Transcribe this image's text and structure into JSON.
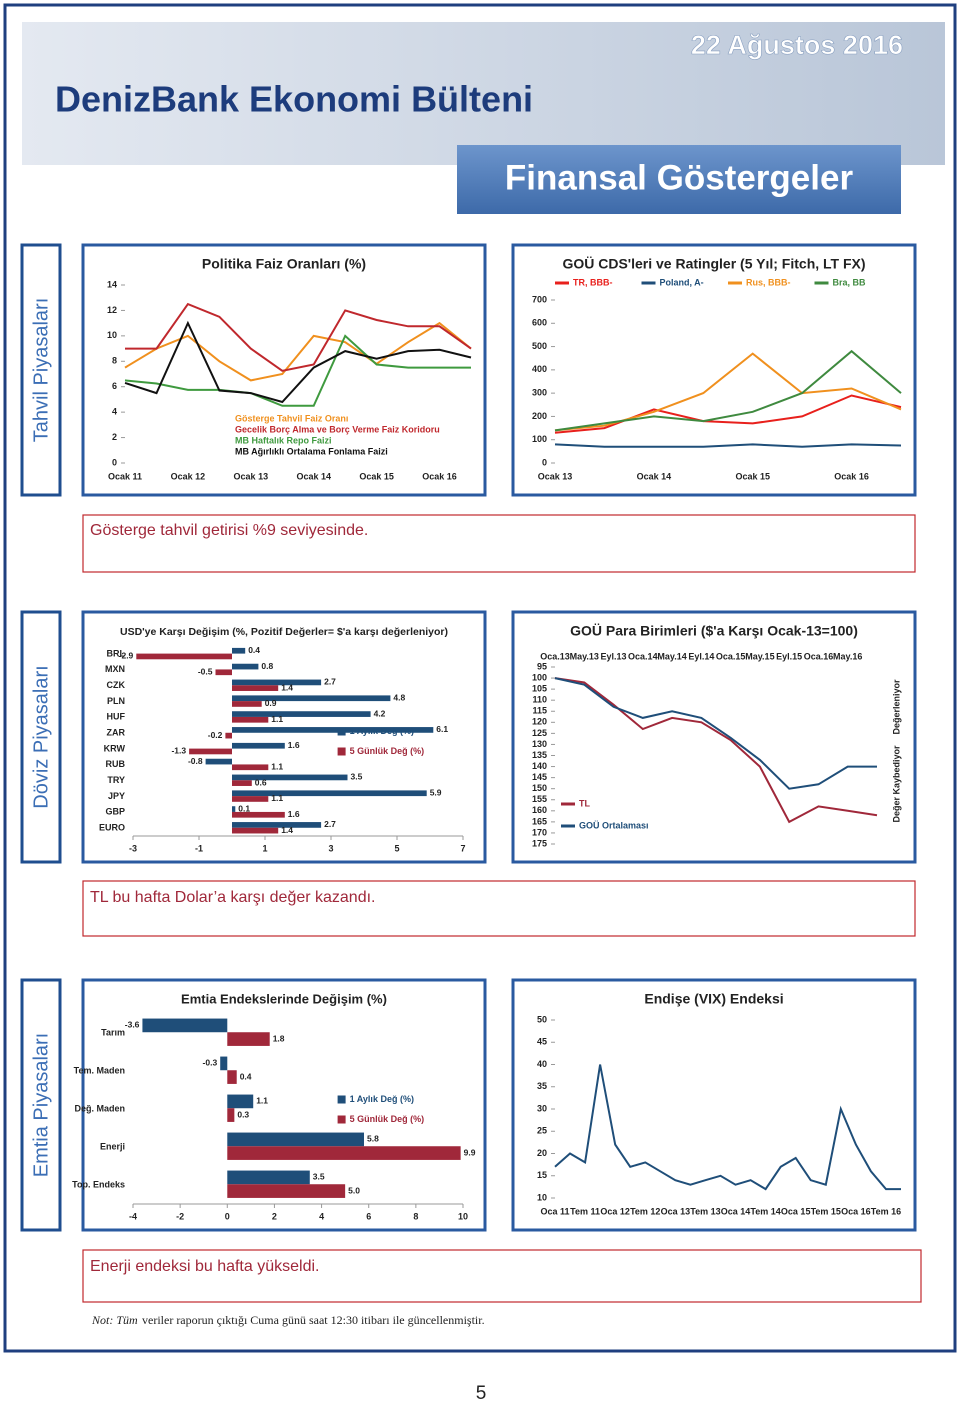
{
  "header": {
    "title": "DenizBank Ekonomi Bülteni",
    "date": "22 Ağustos 2016",
    "section": "Finansal Göstergeler"
  },
  "sections": [
    {
      "label": "Tahvil Piyasaları",
      "comment": "Gösterge tahvil getirisi %9 seviyesinde."
    },
    {
      "label": "Döviz Piyasaları",
      "comment": "TL bu hafta Dolar’a karşı değer kazandı."
    },
    {
      "label": "Emtia Piyasaları",
      "comment": "Enerji endeksi bu hafta yükseldi."
    }
  ],
  "chart_data": [
    {
      "type": "line",
      "title": "Politika Faiz Oranları (%)",
      "categories": [
        "Ocak 11",
        null,
        "Ocak 12",
        null,
        "Ocak 13",
        null,
        "Ocak 14",
        null,
        "Ocak 15",
        null,
        "Ocak 16",
        null
      ],
      "series": [
        {
          "name": "Gösterge Tahvil Faiz Oranı",
          "color": "#f0901e",
          "values": [
            7.5,
            9,
            10,
            8,
            6.5,
            7,
            10,
            9.5,
            7.8,
            9.5,
            11,
            9
          ]
        },
        {
          "name": "Gecelik Borç Alma ve Borç Verme Faiz Koridoru",
          "color": "#c0282d",
          "values": [
            9,
            9,
            12.5,
            11.5,
            9,
            7.25,
            7.75,
            12,
            11.25,
            10.75,
            10.75,
            9
          ]
        },
        {
          "name": "MB Haftalık Repo Faizi",
          "color": "#3f9a3f",
          "values": [
            6.5,
            6.25,
            5.75,
            5.75,
            5.5,
            4.5,
            4.5,
            10,
            7.75,
            7.5,
            7.5,
            7.5
          ]
        },
        {
          "name": "MB Ağırlıklı Ortalama Fonlama Faizi",
          "color": "#111111",
          "values": [
            6.3,
            5.5,
            11,
            5.7,
            5.5,
            4.8,
            7.5,
            8.8,
            8.2,
            8.8,
            8.9,
            8.3
          ]
        }
      ],
      "ylim": [
        0,
        14
      ],
      "yticks": [
        0,
        2,
        4,
        6,
        8,
        10,
        12,
        14
      ],
      "legend": "inside"
    },
    {
      "type": "line",
      "title": "GOÜ CDS'leri ve Ratingler (5 Yıl; Fitch, LT FX)",
      "categories": [
        "Ocak 13",
        null,
        "Ocak 14",
        null,
        "Ocak 15",
        null,
        "Ocak 16",
        null
      ],
      "series": [
        {
          "name": "TR, BBB-",
          "color": "#e8201c",
          "values": [
            130,
            150,
            230,
            180,
            170,
            200,
            290,
            240
          ]
        },
        {
          "name": "Poland, A-",
          "color": "#1f4e79",
          "values": [
            80,
            70,
            70,
            70,
            80,
            70,
            80,
            75
          ]
        },
        {
          "name": "Rus, BBB-",
          "color": "#f0901e",
          "values": [
            140,
            160,
            220,
            300,
            470,
            300,
            320,
            230
          ]
        },
        {
          "name": "Bra, BB",
          "color": "#3f8a3f",
          "values": [
            140,
            170,
            200,
            180,
            220,
            300,
            480,
            300
          ]
        }
      ],
      "ylim": [
        0,
        700
      ],
      "yticks": [
        0,
        100,
        200,
        300,
        400,
        500,
        600,
        700
      ],
      "legend": "top"
    },
    {
      "type": "hbar",
      "title": "USD'ye Karşı Değişim (%, Pozitif Değerler= $'a karşı değerleniyor)",
      "categories": [
        "BRL",
        "MXN",
        "CZK",
        "PLN",
        "HUF",
        "ZAR",
        "KRW",
        "RUB",
        "TRY",
        "JPY",
        "GBP",
        "EURO"
      ],
      "series": [
        {
          "name": "1 Aylık Değ (%)",
          "color": "#1f4e79",
          "values": [
            0.4,
            0.8,
            2.7,
            4.8,
            4.2,
            6.1,
            1.6,
            -0.8,
            3.5,
            5.9,
            0.1,
            2.7
          ]
        },
        {
          "name": "5 Günlük Değ (%)",
          "color": "#a0283a",
          "values": [
            -2.9,
            -0.5,
            1.4,
            0.9,
            1.1,
            -0.2,
            -1.3,
            1.1,
            0.6,
            1.1,
            1.6,
            1.4
          ]
        }
      ],
      "xlim": [
        -3,
        7
      ],
      "xticks": [
        -3,
        -1,
        1,
        3,
        5,
        7
      ],
      "legend": "right"
    },
    {
      "type": "line",
      "title": "GOÜ Para Birimleri ($'a Karşı Ocak-13=100)",
      "categories": [
        "Oca.13",
        "May.13",
        "Eyl.13",
        "Oca.14",
        "May.14",
        "Eyl.14",
        "Oca.15",
        "May.15",
        "Eyl.15",
        "Oca.16",
        "May.16",
        null
      ],
      "series": [
        {
          "name": "TL",
          "color": "#a0283a",
          "values": [
            100,
            102,
            112,
            123,
            118,
            120,
            128,
            140,
            165,
            158,
            160,
            162
          ]
        },
        {
          "name": "GOÜ Ortalaması",
          "color": "#1f4e79",
          "values": [
            100,
            103,
            113,
            118,
            115,
            118,
            127,
            137,
            150,
            148,
            140,
            140
          ]
        }
      ],
      "ylim": [
        95,
        175
      ],
      "inverted": true,
      "xaxis": "top",
      "yticks": [
        95,
        100,
        105,
        110,
        115,
        120,
        125,
        130,
        135,
        140,
        145,
        150,
        155,
        160,
        165,
        170,
        175
      ],
      "legend": "bottom-left",
      "annotations": [
        "Değerleniyor",
        "Değer Kaybediyor"
      ]
    },
    {
      "type": "hbar",
      "title": "Emtia Endekslerinde Değişim (%)",
      "categories": [
        "Tarım",
        "Tem. Maden",
        "Değ. Maden",
        "Enerji",
        "Top. Endeks"
      ],
      "series": [
        {
          "name": "1 Aylık Değ (%)",
          "color": "#1f4e79",
          "values": [
            -3.6,
            -0.3,
            1.1,
            5.8,
            3.5
          ]
        },
        {
          "name": "5 Günlük Değ (%)",
          "color": "#a0283a",
          "values": [
            1.8,
            0.4,
            0.3,
            9.9,
            5
          ],
          "value_labels": [
            "1.8",
            "0.4",
            "0.3",
            "9.9",
            "5.0"
          ]
        }
      ],
      "xlim": [
        -4,
        10
      ],
      "xticks": [
        -4,
        -2,
        0,
        2,
        4,
        6,
        8,
        10
      ],
      "legend": "right"
    },
    {
      "type": "line",
      "title": "Endişe (VIX) Endeksi",
      "categories": [
        "Oca 11",
        null,
        "Tem 11",
        null,
        "Oca 12",
        null,
        "Tem 12",
        null,
        "Oca 13",
        null,
        "Tem 13",
        null,
        "Oca 14",
        null,
        "Tem 14",
        null,
        "Oca 15",
        null,
        "Tem 15",
        null,
        "Oca 16",
        null,
        "Tem 16",
        null
      ],
      "series": [
        {
          "color": "#1f4e79",
          "values": [
            17,
            20,
            18,
            40,
            22,
            17,
            18,
            16,
            14,
            13,
            14,
            15,
            13,
            14,
            12,
            17,
            19,
            14,
            13,
            30,
            22,
            16,
            12,
            12
          ]
        }
      ],
      "ylim": [
        10,
        50
      ],
      "yticks": [
        10,
        15,
        20,
        25,
        30,
        35,
        40,
        45,
        50
      ]
    }
  ],
  "note": {
    "lead": "Not: Tüm",
    "text": "veriler raporun çıktığı Cuma günü saat 12:30 itibarı ile güncellenmiştir."
  },
  "page_number": 5
}
